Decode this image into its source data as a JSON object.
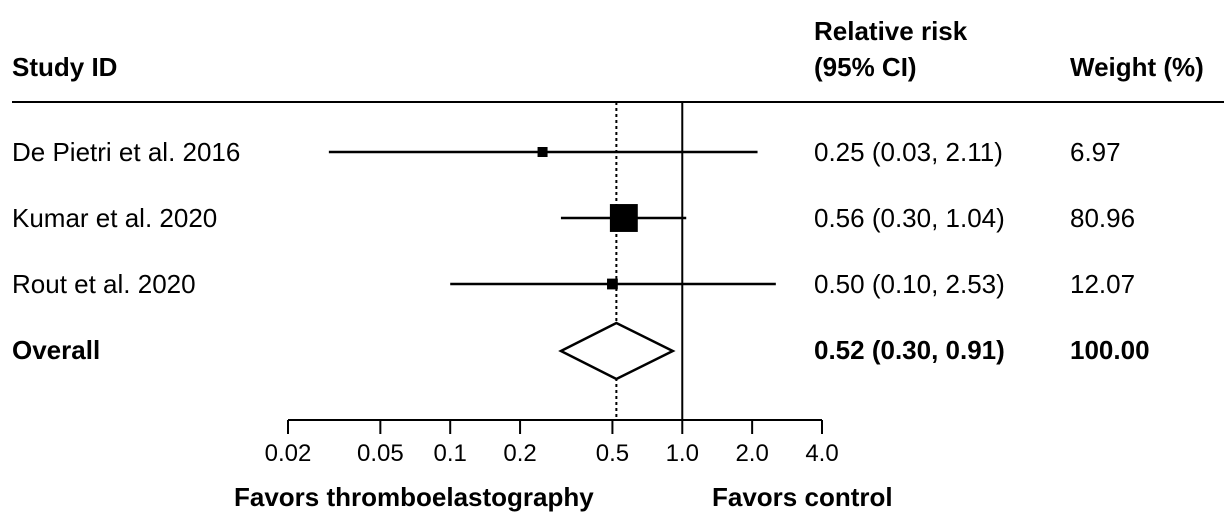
{
  "header": {
    "study_col": "Study ID",
    "rr_col_line1": "Relative risk",
    "rr_col_line2": "(95% CI)",
    "weight_col": "Weight (%)"
  },
  "footer": {
    "favors_left": "Favors thromboelastography",
    "favors_right": "Favors control"
  },
  "chart_data": {
    "type": "forest",
    "scale": "log",
    "xlim": [
      0.02,
      4.0
    ],
    "null_line": 1.0,
    "pooled_line": 0.52,
    "ticks": [
      {
        "value": 0.02,
        "label": "0.02"
      },
      {
        "value": 0.05,
        "label": "0.05"
      },
      {
        "value": 0.1,
        "label": "0.1"
      },
      {
        "value": 0.2,
        "label": "0.2"
      },
      {
        "value": 0.5,
        "label": "0.5"
      },
      {
        "value": 1.0,
        "label": "1.0"
      },
      {
        "value": 2.0,
        "label": "2.0"
      },
      {
        "value": 4.0,
        "label": "4.0"
      }
    ],
    "studies": [
      {
        "name": "De Pietri et al. 2016",
        "rr": 0.25,
        "lo": 0.03,
        "hi": 2.11,
        "weight": 6.97,
        "ci_text": "0.25 (0.03, 2.11)",
        "weight_text": "6.97"
      },
      {
        "name": "Kumar et al. 2020",
        "rr": 0.56,
        "lo": 0.3,
        "hi": 1.04,
        "weight": 80.96,
        "ci_text": "0.56 (0.30, 1.04)",
        "weight_text": "80.96"
      },
      {
        "name": "Rout et al. 2020",
        "rr": 0.5,
        "lo": 0.1,
        "hi": 2.53,
        "weight": 12.07,
        "ci_text": "0.50 (0.10, 2.53)",
        "weight_text": "12.07"
      }
    ],
    "overall": {
      "name": "Overall",
      "rr": 0.52,
      "lo": 0.3,
      "hi": 0.91,
      "weight": 100.0,
      "ci_text": "0.52 (0.30, 0.91)",
      "weight_text": "100.00"
    }
  }
}
